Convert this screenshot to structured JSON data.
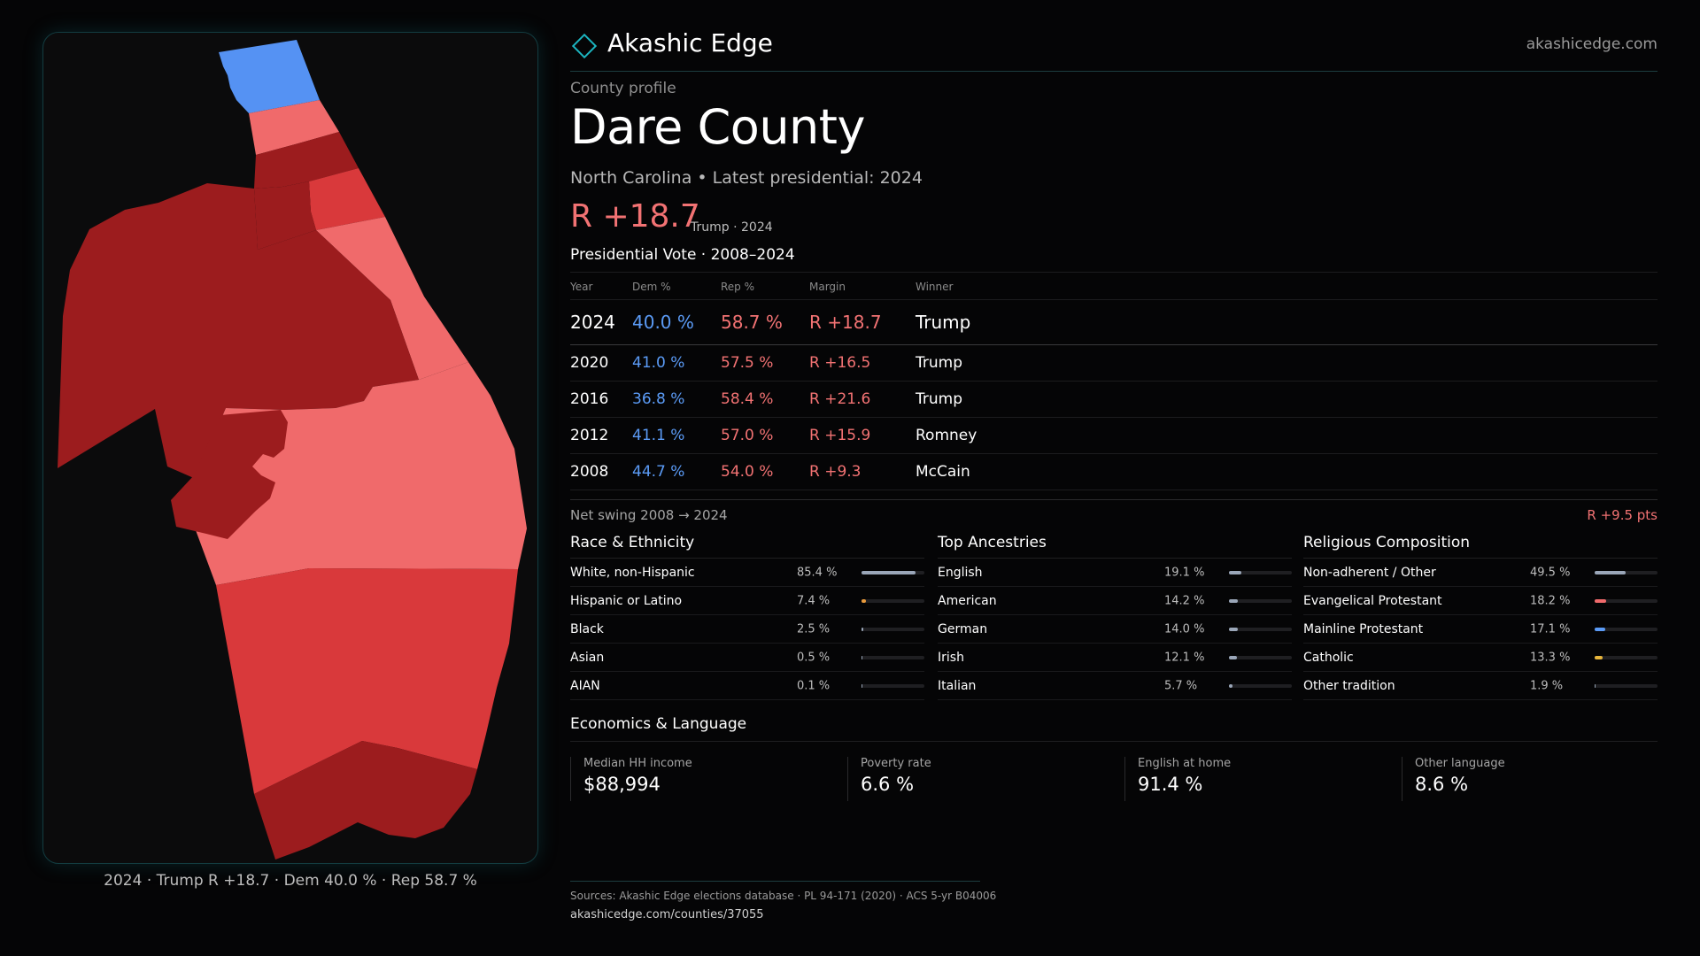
{
  "brand": {
    "name": "Akashic Edge",
    "site": "akashicedge.com"
  },
  "map": {
    "caption": "2024 · Trump R +18.7 · Dem 40.0 % · Rep 58.7 %",
    "colors": {
      "blue": "#5592f3",
      "light_red": "#f06a6b",
      "mid_red": "#d9393b",
      "dark_red": "#9c1c1e"
    }
  },
  "profile": {
    "eyebrow": "County profile",
    "title": "Dare County",
    "subtitle": "North Carolina • Latest presidential: 2024",
    "margin": "R +18.7",
    "margin_note": "Trump · 2024"
  },
  "results": {
    "title": "Presidential Vote · 2008–2024",
    "headers": {
      "year": "Year",
      "dem": "Dem %",
      "rep": "Rep %",
      "margin": "Margin",
      "winner": "Winner"
    },
    "rows": [
      {
        "year": "2024",
        "dem": "40.0 %",
        "rep": "58.7 %",
        "margin": "R +18.7",
        "winner": "Trump"
      },
      {
        "year": "2020",
        "dem": "41.0 %",
        "rep": "57.5 %",
        "margin": "R +16.5",
        "winner": "Trump"
      },
      {
        "year": "2016",
        "dem": "36.8 %",
        "rep": "58.4 %",
        "margin": "R +21.6",
        "winner": "Trump"
      },
      {
        "year": "2012",
        "dem": "41.1 %",
        "rep": "57.0 %",
        "margin": "R +15.9",
        "winner": "Romney"
      },
      {
        "year": "2008",
        "dem": "44.7 %",
        "rep": "54.0 %",
        "margin": "R +9.3",
        "winner": "McCain"
      }
    ],
    "swing_label": "Net swing 2008 → 2024",
    "swing_value": "R +9.5 pts"
  },
  "race": {
    "title": "Race & Ethnicity",
    "rows": [
      {
        "label": "White, non-Hispanic",
        "pct": "85.4 %",
        "value": 85.4,
        "color": "#9aa6b8"
      },
      {
        "label": "Hispanic or Latino",
        "pct": "7.4 %",
        "value": 7.4,
        "color": "#e89a3c"
      },
      {
        "label": "Black",
        "pct": "2.5 %",
        "value": 2.5,
        "color": "#9aa6b8"
      },
      {
        "label": "Asian",
        "pct": "0.5 %",
        "value": 0.5,
        "color": "#9aa6b8"
      },
      {
        "label": "AIAN",
        "pct": "0.1 %",
        "value": 0.1,
        "color": "#9aa6b8"
      }
    ]
  },
  "ancestry": {
    "title": "Top Ancestries",
    "rows": [
      {
        "label": "English",
        "pct": "19.1 %",
        "value": 19.1,
        "color": "#9aa6b8"
      },
      {
        "label": "American",
        "pct": "14.2 %",
        "value": 14.2,
        "color": "#9aa6b8"
      },
      {
        "label": "German",
        "pct": "14.0 %",
        "value": 14.0,
        "color": "#9aa6b8"
      },
      {
        "label": "Irish",
        "pct": "12.1 %",
        "value": 12.1,
        "color": "#9aa6b8"
      },
      {
        "label": "Italian",
        "pct": "5.7 %",
        "value": 5.7,
        "color": "#9aa6b8"
      }
    ]
  },
  "religion": {
    "title": "Religious Composition",
    "rows": [
      {
        "label": "Non-adherent / Other",
        "pct": "49.5 %",
        "value": 49.5,
        "color": "#9aa6b8"
      },
      {
        "label": "Evangelical Protestant",
        "pct": "18.2 %",
        "value": 18.2,
        "color": "#f06a6b"
      },
      {
        "label": "Mainline Protestant",
        "pct": "17.1 %",
        "value": 17.1,
        "color": "#5b9bf6"
      },
      {
        "label": "Catholic",
        "pct": "13.3 %",
        "value": 13.3,
        "color": "#e8b63c"
      },
      {
        "label": "Other tradition",
        "pct": "1.9 %",
        "value": 1.9,
        "color": "#9aa6b8"
      }
    ]
  },
  "economics": {
    "title": "Economics & Language",
    "stats": [
      {
        "label": "Median HH income",
        "value": "$88,994"
      },
      {
        "label": "Poverty rate",
        "value": "6.6 %"
      },
      {
        "label": "English at home",
        "value": "91.4 %"
      },
      {
        "label": "Other language",
        "value": "8.6 %"
      }
    ]
  },
  "footer": {
    "sources": "Sources: Akashic Edge elections database · PL 94-171 (2020) · ACS 5-yr B04006",
    "url": "akashicedge.com/counties/37055"
  }
}
